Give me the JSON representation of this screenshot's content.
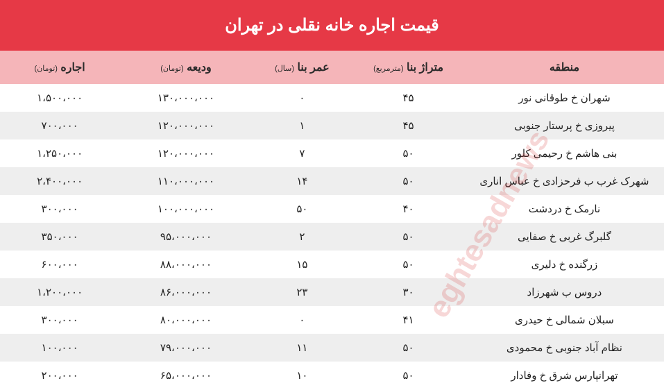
{
  "title": "قیمت اجاره خانه نقلی در تهران",
  "columns": [
    {
      "label": "منطقه",
      "unit": ""
    },
    {
      "label": "متراژ بنا",
      "unit": "(مترمربع)"
    },
    {
      "label": "عمر بنا",
      "unit": "(سال)"
    },
    {
      "label": "ودیعه",
      "unit": "(تومان)"
    },
    {
      "label": "اجاره",
      "unit": "(تومان)"
    }
  ],
  "rows": [
    {
      "region": "شهران خ طوقانی نور",
      "area": "۴۵",
      "age": "۰",
      "deposit": "۱۳۰،۰۰۰،۰۰۰",
      "rent": "۱،۵۰۰،۰۰۰"
    },
    {
      "region": "پیروزی خ پرستار جنوبی",
      "area": "۴۵",
      "age": "۱",
      "deposit": "۱۲۰،۰۰۰،۰۰۰",
      "rent": "۷۰۰،۰۰۰"
    },
    {
      "region": "بنی هاشم خ رحیمی کلور",
      "area": "۵۰",
      "age": "۷",
      "deposit": "۱۲۰،۰۰۰،۰۰۰",
      "rent": "۱،۲۵۰،۰۰۰"
    },
    {
      "region": "شهرک غرب ب فرحزادی خ عباس اناری",
      "area": "۵۰",
      "age": "۱۴",
      "deposit": "۱۱۰،۰۰۰،۰۰۰",
      "rent": "۲،۴۰۰،۰۰۰"
    },
    {
      "region": "نارمک خ دردشت",
      "area": "۴۰",
      "age": "۵۰",
      "deposit": "۱۰۰،۰۰۰،۰۰۰",
      "rent": "۳۰۰،۰۰۰"
    },
    {
      "region": "گلبرگ غربی خ صفایی",
      "area": "۵۰",
      "age": "۲",
      "deposit": "۹۵،۰۰۰،۰۰۰",
      "rent": "۳۵۰،۰۰۰"
    },
    {
      "region": "زرگنده خ دلیری",
      "area": "۵۰",
      "age": "۱۵",
      "deposit": "۸۸،۰۰۰،۰۰۰",
      "rent": "۶۰۰،۰۰۰"
    },
    {
      "region": "دروس ب شهرزاد",
      "area": "۳۰",
      "age": "۲۳",
      "deposit": "۸۶،۰۰۰،۰۰۰",
      "rent": "۱،۲۰۰،۰۰۰"
    },
    {
      "region": "سبلان شمالی خ حیدری",
      "area": "۴۱",
      "age": "۰",
      "deposit": "۸۰،۰۰۰،۰۰۰",
      "rent": "۳۰۰،۰۰۰"
    },
    {
      "region": "نظام آباد جنوبی خ محمودی",
      "area": "۵۰",
      "age": "۱۱",
      "deposit": "۷۹،۰۰۰،۰۰۰",
      "rent": "۱۰۰،۰۰۰"
    },
    {
      "region": "تهرانپارس شرق خ وفادار",
      "area": "۵۰",
      "age": "۱۰",
      "deposit": "۶۵،۰۰۰،۰۰۰",
      "rent": "۲۰۰،۰۰۰"
    }
  ],
  "style": {
    "title_bg": "#e63946",
    "title_color": "#ffffff",
    "header_bg": "#f5b5b9",
    "row_odd_bg": "#ffffff",
    "row_even_bg": "#eeeeee",
    "text_color": "#222222",
    "title_fontsize": 24,
    "header_fontsize": 16,
    "header_unit_fontsize": 11,
    "cell_fontsize": 15,
    "col_widths_pct": [
      30,
      17,
      15,
      20,
      18
    ],
    "watermark_color": "#d62828",
    "watermark_opacity": 0.18
  },
  "watermark_text": "eghtesadnews"
}
